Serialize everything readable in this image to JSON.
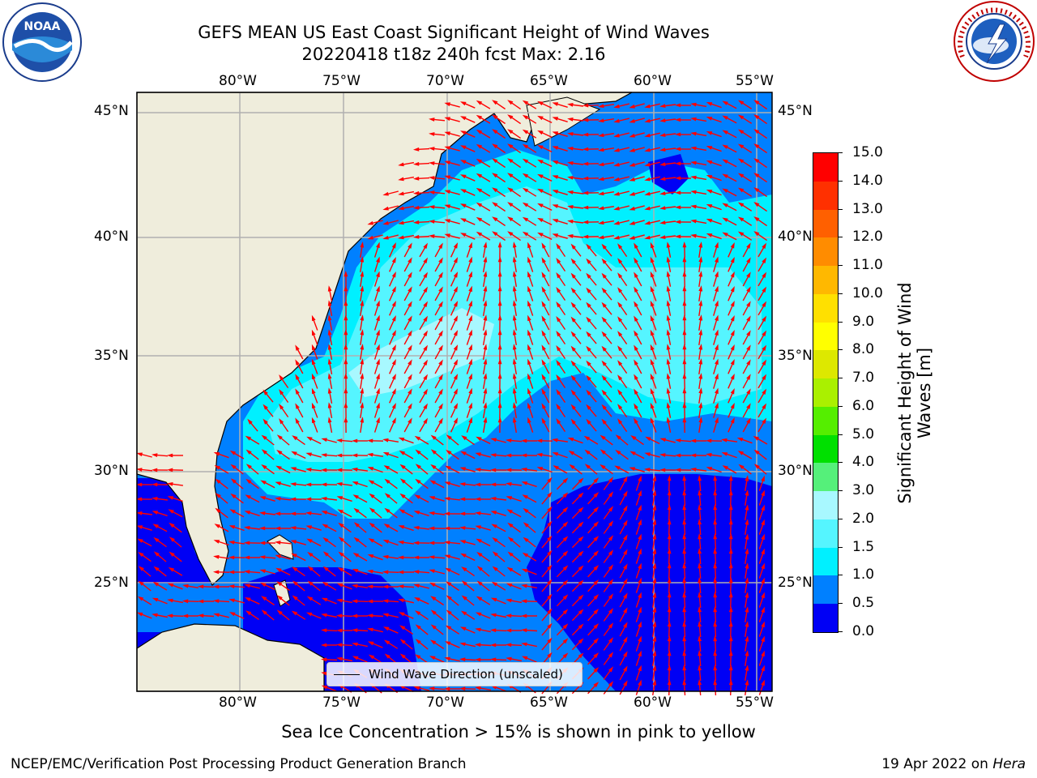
{
  "header": {
    "title_line1": "GEFS MEAN US East Coast Significant Height of Wind Waves",
    "title_line2": "20220418 t18z 240h fcst   Max: 2.16"
  },
  "logos": {
    "left_word": "NOAA",
    "right_word": "NATIONAL WEATHER SERVICE"
  },
  "map": {
    "lon_ticks": [
      "80°W",
      "75°W",
      "70°W",
      "65°W",
      "60°W",
      "55°W"
    ],
    "lat_ticks": [
      "45°N",
      "40°N",
      "35°N",
      "30°N",
      "25°N"
    ],
    "legend_label": "Wind Wave Direction (unscaled)",
    "colors": {
      "land": "#efeddc",
      "grid": "#b0b0b0",
      "arrow": "#ff0000"
    }
  },
  "colorbar": {
    "label": "Significant Height of Wind Waves [m]",
    "ticks": [
      "0.0",
      "0.5",
      "1.0",
      "1.5",
      "2.0",
      "3.0",
      "4.0",
      "5.0",
      "6.0",
      "7.0",
      "8.0",
      "9.0",
      "10.0",
      "11.0",
      "12.0",
      "13.0",
      "14.0",
      "15.0"
    ],
    "colors": [
      "#0000f5",
      "#0080ff",
      "#00f0ff",
      "#55f5ff",
      "#a8f8ff",
      "#55f07a",
      "#00e000",
      "#55ee00",
      "#aaf000",
      "#dde800",
      "#ffff00",
      "#ffe000",
      "#ffb800",
      "#ff8c00",
      "#ff6000",
      "#ff3000",
      "#ff0000"
    ]
  },
  "footer": {
    "ice_note": "Sea Ice Concentration > 15% is shown in pink to yellow",
    "branch": "NCEP/EMC/Verification Post Processing Product Generation Branch",
    "date_prefix": "19 Apr 2022 on ",
    "machine": "Hera"
  }
}
